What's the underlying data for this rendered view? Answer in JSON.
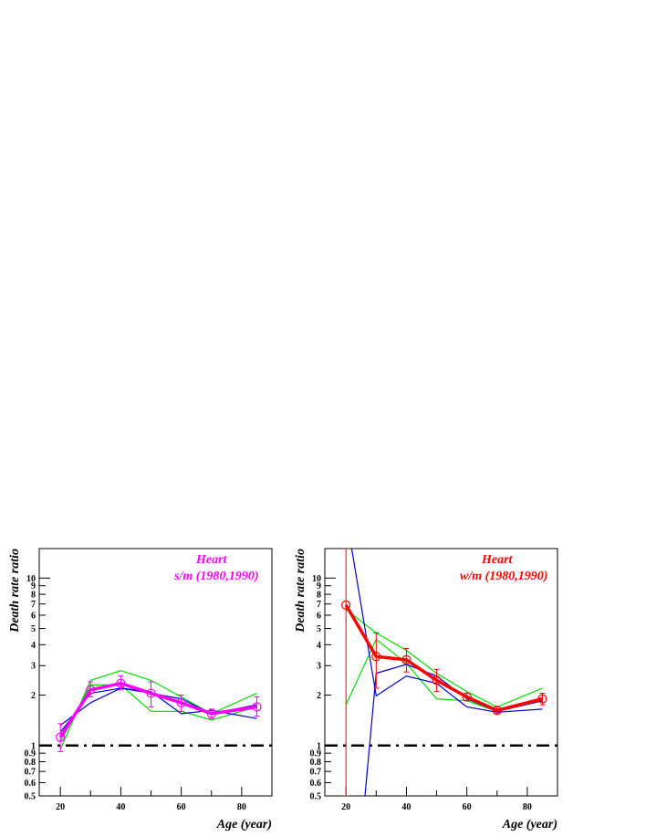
{
  "chart_data": [
    {
      "type": "line",
      "title_lines": [
        "Heart",
        "s/m (1980,1990)"
      ],
      "title_color": "#ff00ff",
      "xlabel": "Age (year)",
      "ylabel": "Death rate ratio",
      "xlim": [
        13,
        90
      ],
      "ylim": [
        0.5,
        15
      ],
      "yscale": "log",
      "xticks": [
        "20",
        "40",
        "60",
        "80"
      ],
      "yticks": [
        "0.5",
        "0.6",
        "0.7",
        "0.8",
        "0.9",
        "1",
        "2",
        "3",
        "4",
        "5",
        "6",
        "7",
        "8",
        "9",
        "10"
      ],
      "reference_line": 1,
      "series": [
        {
          "role": "main",
          "color": "#ff00ff",
          "x": [
            20,
            30,
            40,
            50,
            60,
            70,
            85
          ],
          "y": [
            1.12,
            2.15,
            2.35,
            2.05,
            1.8,
            1.55,
            1.7
          ],
          "yerr_low": [
            0.92,
            1.95,
            2.15,
            1.7,
            1.6,
            1.45,
            1.5
          ],
          "yerr_high": [
            1.35,
            2.4,
            2.6,
            2.4,
            2.0,
            1.65,
            1.95
          ]
        },
        {
          "role": "comparison",
          "color": "#00dd00",
          "x": [
            20,
            30,
            40,
            50,
            60,
            70,
            85
          ],
          "y": [
            0.95,
            2.45,
            2.8,
            2.45,
            1.95,
            1.55,
            2.05
          ]
        },
        {
          "role": "comparison",
          "color": "#00dd00",
          "x": [
            20,
            30,
            40,
            50,
            60,
            70,
            85
          ],
          "y": [
            1.05,
            2.3,
            2.3,
            1.6,
            1.6,
            1.42,
            1.7
          ]
        },
        {
          "role": "comparison",
          "color": "#0000cc",
          "x": [
            20,
            30,
            40,
            50,
            60,
            70,
            85
          ],
          "y": [
            1.32,
            1.8,
            2.2,
            2.1,
            1.55,
            1.62,
            1.45
          ]
        },
        {
          "role": "comparison",
          "color": "#0000cc",
          "x": [
            20,
            30,
            40,
            50,
            60,
            70,
            85
          ],
          "y": [
            1.2,
            2.05,
            2.2,
            2.05,
            1.9,
            1.55,
            1.75
          ]
        }
      ]
    },
    {
      "type": "line",
      "title_lines": [
        "Heart",
        "w/m (1980,1990)"
      ],
      "title_color": "#ff0000",
      "xlabel": "Age (year)",
      "ylabel": "Death rate ratio",
      "xlim": [
        13,
        90
      ],
      "ylim": [
        0.5,
        15
      ],
      "yscale": "log",
      "xticks": [
        "20",
        "40",
        "60",
        "80"
      ],
      "yticks": [
        "0.5",
        "0.6",
        "0.7",
        "0.8",
        "0.9",
        "1",
        "2",
        "3",
        "4",
        "5",
        "6",
        "7",
        "8",
        "9",
        "10"
      ],
      "reference_line": 1,
      "series": [
        {
          "role": "main",
          "color": "#ff0000",
          "x": [
            20,
            30,
            40,
            50,
            60,
            70,
            85
          ],
          "y": [
            6.9,
            3.4,
            3.25,
            2.45,
            1.95,
            1.62,
            1.9
          ],
          "yerr_low": [
            0.5,
            2.2,
            2.75,
            2.1,
            1.85,
            1.55,
            1.75
          ],
          "yerr_high": [
            15,
            4.7,
            3.8,
            2.85,
            2.05,
            1.7,
            2.05
          ]
        },
        {
          "role": "comparison",
          "color": "#00dd00",
          "x": [
            20,
            30,
            40,
            50,
            60,
            70,
            85
          ],
          "y": [
            6.5,
            4.7,
            3.7,
            2.7,
            2.1,
            1.7,
            2.2
          ]
        },
        {
          "role": "comparison",
          "color": "#00dd00",
          "x": [
            20,
            30,
            40,
            50,
            60,
            70,
            85
          ],
          "y": [
            1.75,
            4.3,
            3.1,
            1.9,
            1.85,
            1.6,
            1.85
          ]
        },
        {
          "role": "comparison",
          "color": "#0000cc",
          "x": [
            20,
            30,
            40,
            50,
            60,
            70,
            85
          ],
          "y": [
            24,
            1.98,
            2.6,
            2.35,
            1.7,
            1.58,
            1.65
          ]
        },
        {
          "role": "comparison",
          "color": "#0000cc",
          "x": [
            20,
            26,
            30,
            40,
            50,
            60,
            70,
            85
          ],
          "y": [
            0.5,
            0.44,
            2.7,
            3.05,
            2.6,
            1.9,
            1.6,
            1.85
          ]
        }
      ]
    }
  ]
}
